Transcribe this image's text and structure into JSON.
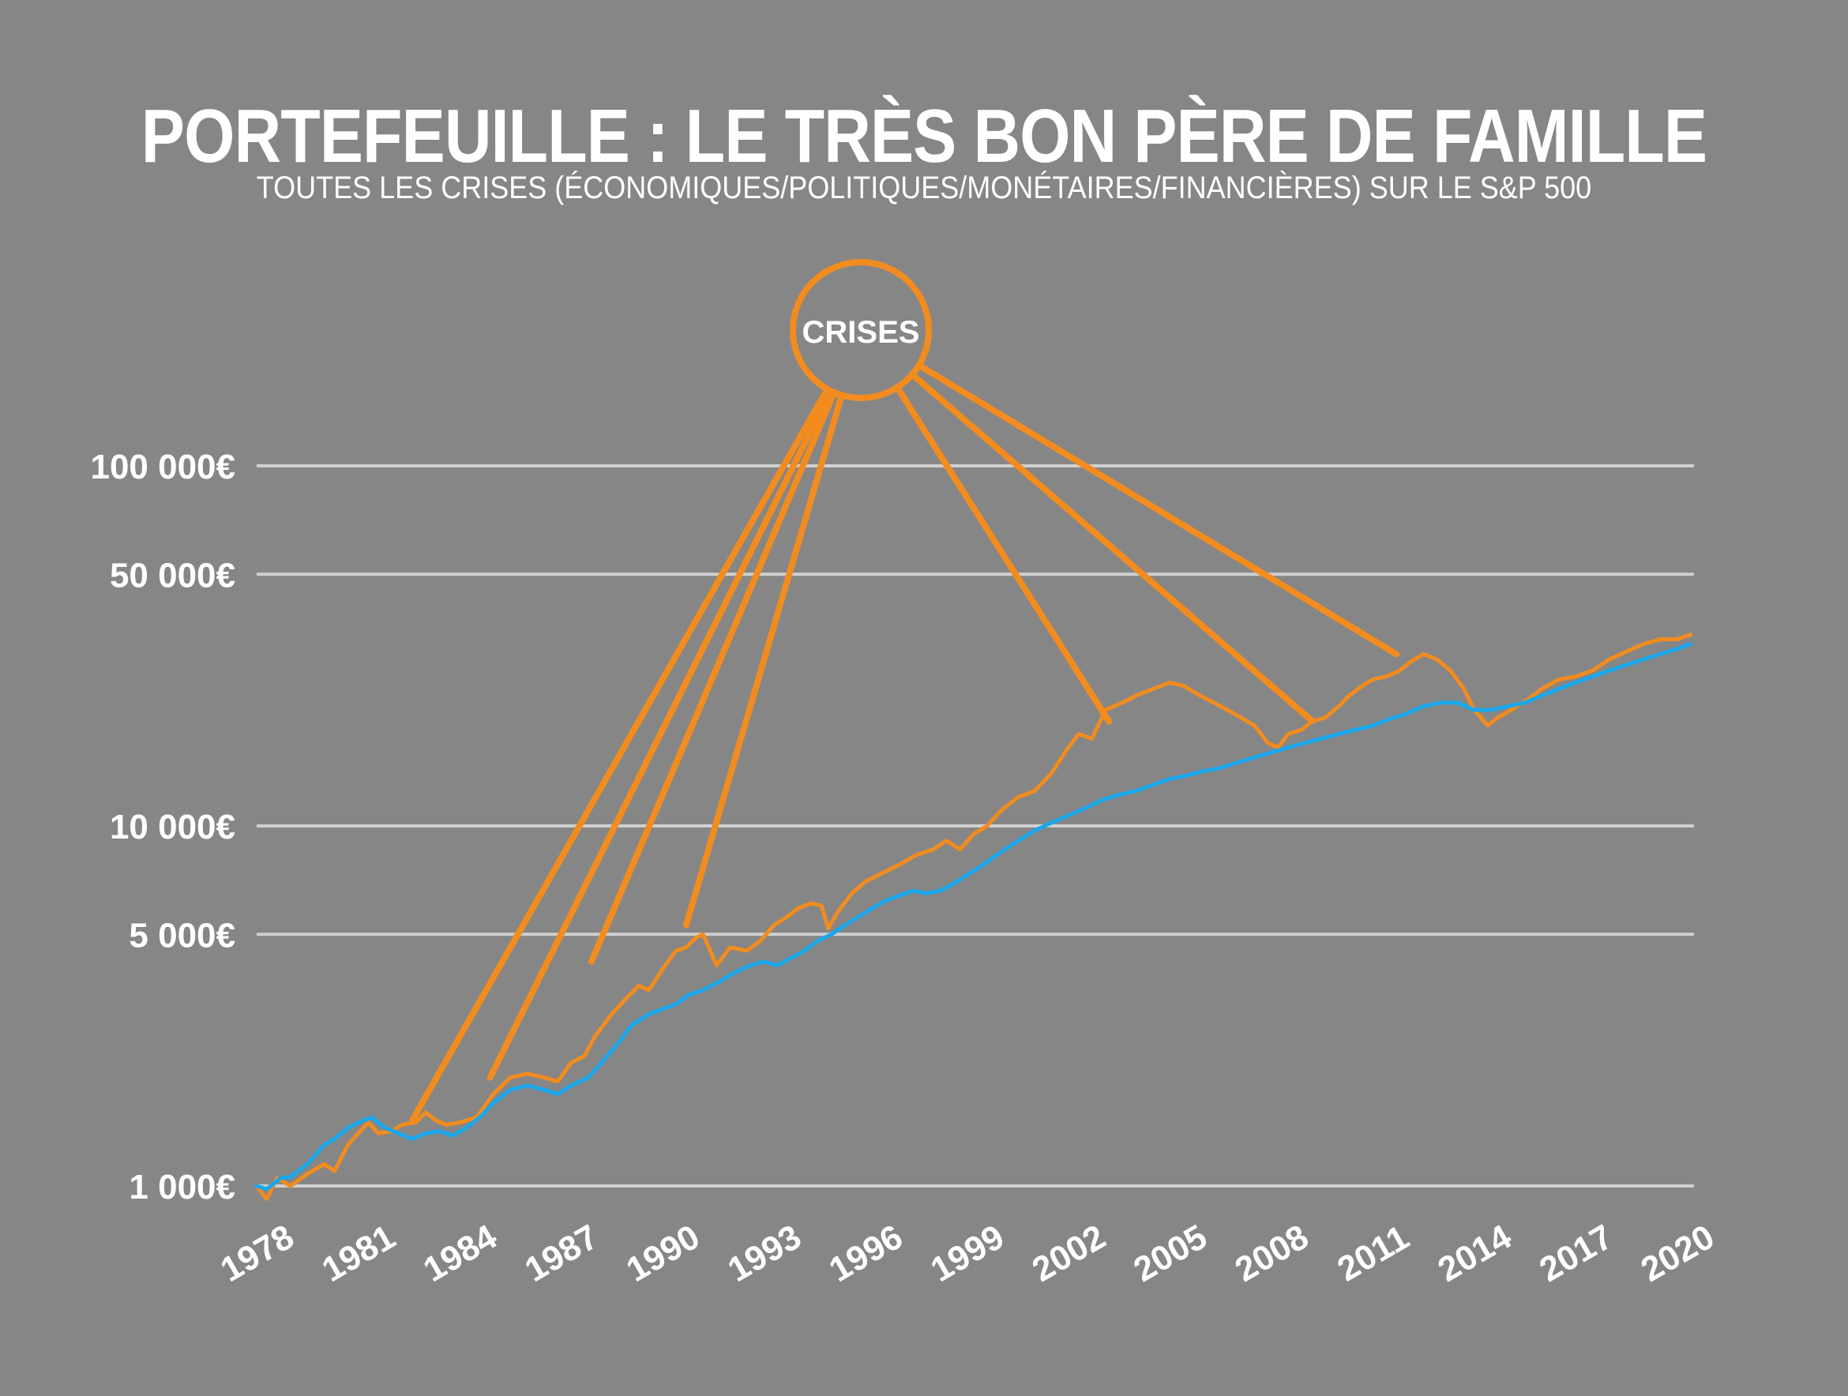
{
  "title": "PORTEFEUILLE : LE TRÈS BON PÈRE DE FAMILLE",
  "subtitle": "TOUTES LES CRISES (ÉCONOMIQUES/POLITIQUES/MONÉTAIRES/FINANCIÈRES) SUR LE S&P 500",
  "annotation": {
    "label": "CRISES"
  },
  "colors": {
    "background": "#868686",
    "orange": "#f28c1f",
    "blue": "#1aa7ec",
    "grid": "#d0d0d0",
    "text": "#ffffff"
  },
  "chart_data": {
    "type": "line",
    "y_scale": "log",
    "ylim": [
      1000,
      100000
    ],
    "xlim": [
      1978,
      2020.5
    ],
    "y_ticks": [
      {
        "value": 1000,
        "label": "1 000€"
      },
      {
        "value": 5000,
        "label": "5 000€"
      },
      {
        "value": 10000,
        "label": "10 000€"
      },
      {
        "value": 50000,
        "label": "50 000€"
      },
      {
        "value": 100000,
        "label": "100 000€"
      }
    ],
    "x_ticks": [
      "1978",
      "1981",
      "1984",
      "1987",
      "1990",
      "1993",
      "1996",
      "1999",
      "2002",
      "2005",
      "2008",
      "2011",
      "2014",
      "2017",
      "2020"
    ],
    "grid": true,
    "series": [
      {
        "color": "#f28c1f",
        "points": [
          [
            1978.0,
            1000
          ],
          [
            1978.3,
            920
          ],
          [
            1978.6,
            1050
          ],
          [
            1979.0,
            1000
          ],
          [
            1979.5,
            1080
          ],
          [
            1980.0,
            1150
          ],
          [
            1980.3,
            1100
          ],
          [
            1980.7,
            1300
          ],
          [
            1981.0,
            1400
          ],
          [
            1981.3,
            1500
          ],
          [
            1981.6,
            1400
          ],
          [
            1982.0,
            1420
          ],
          [
            1982.3,
            1480
          ],
          [
            1982.7,
            1500
          ],
          [
            1983.0,
            1600
          ],
          [
            1983.3,
            1520
          ],
          [
            1983.6,
            1480
          ],
          [
            1984.0,
            1500
          ],
          [
            1984.5,
            1550
          ],
          [
            1985.0,
            1800
          ],
          [
            1985.5,
            2000
          ],
          [
            1986.0,
            2050
          ],
          [
            1986.5,
            2000
          ],
          [
            1986.9,
            1950
          ],
          [
            1987.3,
            2200
          ],
          [
            1987.7,
            2300
          ],
          [
            1988.0,
            2600
          ],
          [
            1988.5,
            3000
          ],
          [
            1988.9,
            3300
          ],
          [
            1989.3,
            3600
          ],
          [
            1989.6,
            3500
          ],
          [
            1990.0,
            4000
          ],
          [
            1990.4,
            4500
          ],
          [
            1990.7,
            4600
          ],
          [
            1991.0,
            4900
          ],
          [
            1991.2,
            5000
          ],
          [
            1991.6,
            4100
          ],
          [
            1992.0,
            4600
          ],
          [
            1992.5,
            4500
          ],
          [
            1992.9,
            4800
          ],
          [
            1993.3,
            5300
          ],
          [
            1993.7,
            5600
          ],
          [
            1994.0,
            5900
          ],
          [
            1994.4,
            6100
          ],
          [
            1994.7,
            6000
          ],
          [
            1994.9,
            5200
          ],
          [
            1995.2,
            5800
          ],
          [
            1995.6,
            6500
          ],
          [
            1996.0,
            7000
          ],
          [
            1996.5,
            7400
          ],
          [
            1997.0,
            7800
          ],
          [
            1997.5,
            8300
          ],
          [
            1998.0,
            8600
          ],
          [
            1998.4,
            9100
          ],
          [
            1998.8,
            8600
          ],
          [
            1999.2,
            9500
          ],
          [
            1999.6,
            10000
          ],
          [
            2000.0,
            11000
          ],
          [
            2000.5,
            12000
          ],
          [
            2001.0,
            12500
          ],
          [
            2001.5,
            14000
          ],
          [
            2001.9,
            16000
          ],
          [
            2002.3,
            18000
          ],
          [
            2002.7,
            17500
          ],
          [
            2003.1,
            21000
          ],
          [
            2003.6,
            22000
          ],
          [
            2004.0,
            23000
          ],
          [
            2004.5,
            24000
          ],
          [
            2005.0,
            25000
          ],
          [
            2005.4,
            24500
          ],
          [
            2005.9,
            23000
          ],
          [
            2006.3,
            22000
          ],
          [
            2006.7,
            21000
          ],
          [
            2007.1,
            20000
          ],
          [
            2007.5,
            19000
          ],
          [
            2007.9,
            17000
          ],
          [
            2008.2,
            16500
          ],
          [
            2008.5,
            18000
          ],
          [
            2008.9,
            18500
          ],
          [
            2009.2,
            19500
          ],
          [
            2009.6,
            20000
          ],
          [
            2010.0,
            21500
          ],
          [
            2010.3,
            23000
          ],
          [
            2010.7,
            24500
          ],
          [
            2011.0,
            25500
          ],
          [
            2011.4,
            26000
          ],
          [
            2011.8,
            27000
          ],
          [
            2012.1,
            28500
          ],
          [
            2012.5,
            30000
          ],
          [
            2012.9,
            29000
          ],
          [
            2013.3,
            27000
          ],
          [
            2013.7,
            24000
          ],
          [
            2014.0,
            21000
          ],
          [
            2014.4,
            19000
          ],
          [
            2014.7,
            20000
          ],
          [
            2015.1,
            21000
          ],
          [
            2015.6,
            22500
          ],
          [
            2016.0,
            24000
          ],
          [
            2016.5,
            25500
          ],
          [
            2017.0,
            26000
          ],
          [
            2017.5,
            27000
          ],
          [
            2018.0,
            29000
          ],
          [
            2018.5,
            30500
          ],
          [
            2019.0,
            32000
          ],
          [
            2019.5,
            33000
          ],
          [
            2020.0,
            33000
          ],
          [
            2020.4,
            34000
          ]
        ]
      },
      {
        "color": "#1aa7ec",
        "points": [
          [
            1978.0,
            1000
          ],
          [
            1978.3,
            980
          ],
          [
            1978.7,
            1050
          ],
          [
            1979.0,
            1060
          ],
          [
            1979.5,
            1150
          ],
          [
            1980.0,
            1300
          ],
          [
            1980.3,
            1350
          ],
          [
            1980.7,
            1450
          ],
          [
            1981.0,
            1500
          ],
          [
            1981.4,
            1550
          ],
          [
            1981.8,
            1450
          ],
          [
            1982.2,
            1400
          ],
          [
            1982.6,
            1350
          ],
          [
            1983.0,
            1400
          ],
          [
            1983.4,
            1420
          ],
          [
            1983.8,
            1380
          ],
          [
            1984.2,
            1450
          ],
          [
            1984.6,
            1550
          ],
          [
            1985.0,
            1700
          ],
          [
            1985.5,
            1850
          ],
          [
            1986.0,
            1900
          ],
          [
            1986.5,
            1850
          ],
          [
            1986.9,
            1800
          ],
          [
            1987.3,
            1900
          ],
          [
            1987.8,
            2000
          ],
          [
            1988.2,
            2200
          ],
          [
            1988.7,
            2500
          ],
          [
            1989.1,
            2800
          ],
          [
            1989.6,
            3000
          ],
          [
            1990.0,
            3100
          ],
          [
            1990.4,
            3200
          ],
          [
            1990.8,
            3400
          ],
          [
            1991.2,
            3500
          ],
          [
            1991.7,
            3700
          ],
          [
            1992.1,
            3900
          ],
          [
            1992.6,
            4100
          ],
          [
            1993.0,
            4200
          ],
          [
            1993.4,
            4100
          ],
          [
            1993.8,
            4300
          ],
          [
            1994.2,
            4500
          ],
          [
            1994.6,
            4800
          ],
          [
            1995.0,
            5000
          ],
          [
            1995.4,
            5300
          ],
          [
            1995.8,
            5600
          ],
          [
            1996.2,
            5900
          ],
          [
            1996.6,
            6200
          ],
          [
            1997.0,
            6400
          ],
          [
            1997.4,
            6600
          ],
          [
            1997.8,
            6500
          ],
          [
            1998.2,
            6600
          ],
          [
            1998.6,
            6900
          ],
          [
            1999.0,
            7300
          ],
          [
            1999.4,
            7700
          ],
          [
            1999.8,
            8200
          ],
          [
            2000.2,
            8700
          ],
          [
            2000.6,
            9200
          ],
          [
            2001.0,
            9700
          ],
          [
            2001.5,
            10200
          ],
          [
            2002.0,
            10700
          ],
          [
            2002.5,
            11200
          ],
          [
            2003.0,
            11800
          ],
          [
            2003.5,
            12200
          ],
          [
            2004.0,
            12500
          ],
          [
            2004.5,
            13000
          ],
          [
            2005.0,
            13500
          ],
          [
            2005.5,
            13800
          ],
          [
            2006.0,
            14200
          ],
          [
            2006.5,
            14500
          ],
          [
            2007.0,
            15000
          ],
          [
            2007.5,
            15500
          ],
          [
            2008.0,
            16000
          ],
          [
            2008.5,
            16500
          ],
          [
            2009.0,
            17000
          ],
          [
            2009.5,
            17500
          ],
          [
            2010.0,
            18000
          ],
          [
            2010.5,
            18500
          ],
          [
            2011.0,
            19000
          ],
          [
            2011.5,
            19800
          ],
          [
            2012.0,
            20500
          ],
          [
            2012.5,
            21500
          ],
          [
            2013.0,
            22000
          ],
          [
            2013.5,
            22000
          ],
          [
            2014.0,
            21000
          ],
          [
            2014.5,
            21000
          ],
          [
            2015.0,
            21500
          ],
          [
            2015.5,
            22000
          ],
          [
            2016.0,
            23000
          ],
          [
            2016.5,
            24000
          ],
          [
            2017.0,
            25000
          ],
          [
            2017.5,
            26000
          ],
          [
            2018.0,
            27000
          ],
          [
            2018.5,
            28000
          ],
          [
            2019.0,
            29000
          ],
          [
            2019.5,
            30000
          ],
          [
            2020.0,
            31000
          ],
          [
            2020.4,
            32000
          ]
        ]
      }
    ],
    "crisis_points": [
      {
        "x": 1982.6,
        "y": 1520
      },
      {
        "x": 1984.9,
        "y": 2000
      },
      {
        "x": 1987.9,
        "y": 4200
      },
      {
        "x": 1990.7,
        "y": 5300
      },
      {
        "x": 2003.2,
        "y": 19500
      },
      {
        "x": 2009.2,
        "y": 19600
      },
      {
        "x": 2011.7,
        "y": 30000
      }
    ]
  }
}
